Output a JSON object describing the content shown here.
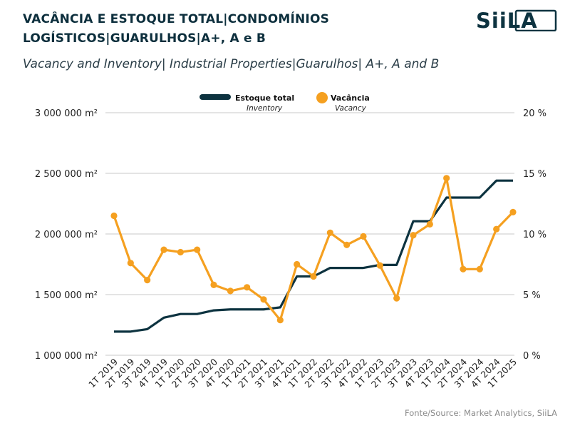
{
  "header": {
    "title": "VACÂNCIA E ESTOQUE TOTAL|CONDOMÍNIOS LOGÍSTICOS|GUARULHOS|A+, A e B",
    "subtitle": "Vacancy and Inventory| Industrial Properties|Guarulhos| A+, A and B",
    "logo_text": "SiiLA"
  },
  "footer": {
    "source": "Fonte/Source: Market Analytics, SiiLA"
  },
  "chart_data": {
    "type": "line",
    "categories": [
      "1T 2019",
      "2T 2019",
      "3T 2019",
      "4T 2019",
      "1T 2020",
      "2T 2020",
      "3T 2020",
      "4T 2020",
      "1T 2021",
      "2T 2021",
      "3T 2021",
      "4T 2021",
      "1T 2022",
      "2T 2022",
      "3T 2022",
      "4T 2022",
      "1T 2023",
      "2T 2023",
      "3T 2023",
      "4T 2023",
      "1T 2024",
      "2T 2024",
      "3T 2024",
      "4T 2024",
      "1T 2025"
    ],
    "series": [
      {
        "name": "Estoque total",
        "name_en": "Inventory",
        "axis": "left",
        "color": "#0d3340",
        "values": [
          1195000,
          1195000,
          1215000,
          1310000,
          1340000,
          1340000,
          1370000,
          1378000,
          1378000,
          1378000,
          1395000,
          1650000,
          1650000,
          1720000,
          1720000,
          1720000,
          1745000,
          1745000,
          2105000,
          2105000,
          2300000,
          2300000,
          2300000,
          2440000,
          2440000
        ]
      },
      {
        "name": "Vacância",
        "name_en": "Vacancy",
        "axis": "right",
        "color": "#f5a020",
        "values": [
          11.5,
          7.6,
          6.2,
          8.7,
          8.5,
          8.7,
          5.8,
          5.3,
          5.6,
          4.6,
          2.9,
          7.5,
          6.5,
          10.1,
          9.1,
          9.8,
          7.4,
          4.7,
          9.9,
          10.8,
          14.6,
          7.1,
          7.1,
          10.4,
          11.8
        ]
      }
    ],
    "y_left": {
      "ylim": [
        1000000,
        3000000
      ],
      "ticks": [
        1000000,
        1500000,
        2000000,
        2500000,
        3000000
      ],
      "tick_labels": [
        "1 000 000 m²",
        "1 500 000 m²",
        "2 000 000 m²",
        "2 500 000 m²",
        "3 000 000 m²"
      ]
    },
    "y_right": {
      "ylim": [
        0,
        20
      ],
      "ticks": [
        0,
        5,
        10,
        15,
        20
      ],
      "tick_labels": [
        "0 %",
        "5 %",
        "10 %",
        "15 %",
        "20 %"
      ]
    },
    "grid": true,
    "legend_position": "top-center"
  }
}
